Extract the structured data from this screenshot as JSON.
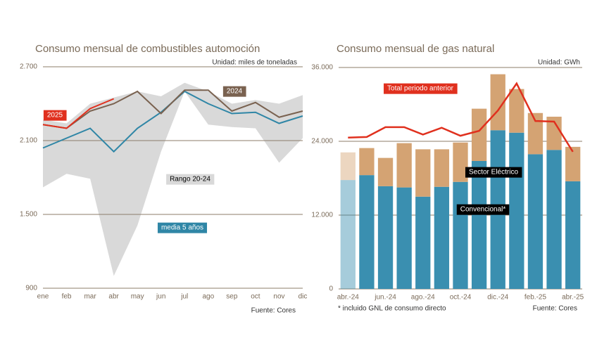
{
  "chart_data": [
    {
      "type": "line",
      "title": "Consumo mensual de combustibles automoción",
      "unit_note": "Unidad: miles de toneladas",
      "source": "Fuente: Cores",
      "categories": [
        "ene",
        "feb",
        "mar",
        "abr",
        "may",
        "jun",
        "jul",
        "ago",
        "sep",
        "oct",
        "nov",
        "dic"
      ],
      "ylim": [
        900,
        2700
      ],
      "yticks": [
        900,
        {
          "value": 1500,
          "label": "1.500"
        },
        {
          "value": 2100,
          "label": "2.100"
        },
        {
          "value": 2700,
          "label": "2.700"
        }
      ],
      "grid": true,
      "series": [
        {
          "name": "Rango 20-24",
          "type": "range",
          "color": "#d9d9d9",
          "low": [
            1720,
            1830,
            1790,
            1000,
            1410,
            2010,
            2500,
            2230,
            2210,
            2200,
            1920,
            2120
          ],
          "high": [
            2270,
            2240,
            2400,
            2450,
            2500,
            2460,
            2570,
            2500,
            2400,
            2430,
            2400,
            2470
          ]
        },
        {
          "name": "media 5 años",
          "color": "#2f86a6",
          "values": [
            2040,
            2120,
            2200,
            2010,
            2200,
            2330,
            2500,
            2400,
            2320,
            2330,
            2240,
            2300
          ]
        },
        {
          "name": "2024",
          "color": "#7a6250",
          "values": [
            2230,
            2200,
            2340,
            2400,
            2500,
            2320,
            2510,
            2510,
            2340,
            2410,
            2290,
            2340
          ]
        },
        {
          "name": "2025",
          "color": "#e0301e",
          "values": [
            2230,
            2200,
            2360,
            2440,
            null,
            null,
            null,
            null,
            null,
            null,
            null,
            null
          ]
        }
      ]
    },
    {
      "type": "stacked_bar",
      "title": "Consumo mensual de gas natural",
      "unit_note": "Unidad: GWh",
      "footnote": "* incluido GNL de consumo directo",
      "source": "Fuente: Cores",
      "categories": [
        "abr.-24",
        null,
        "jun.-24",
        null,
        "ago.-24",
        null,
        "oct.-24",
        null,
        "dic.-24",
        null,
        "feb.-25",
        null,
        "abr.-25"
      ],
      "ylim": [
        0,
        36000
      ],
      "yticks": [
        0,
        {
          "value": 12000,
          "label": "12.000"
        },
        {
          "value": 24000,
          "label": "24.000"
        },
        {
          "value": 36000,
          "label": "36.000"
        }
      ],
      "grid": true,
      "series": [
        {
          "name": "Convencional*",
          "color": "#3a8fb0",
          "values": [
            17700,
            18500,
            16700,
            16500,
            15000,
            16600,
            17400,
            20800,
            25800,
            25400,
            21900,
            22600,
            17500
          ]
        },
        {
          "name": "Sector Eléctrico",
          "color": "#d4a373",
          "values": [
            4500,
            4400,
            4600,
            7200,
            7700,
            6100,
            6400,
            8500,
            9100,
            7100,
            6700,
            5400,
            5600
          ]
        },
        {
          "name": "Total periodo anterior",
          "type": "line",
          "color": "#e0301e",
          "values": [
            24600,
            24700,
            26300,
            26300,
            25100,
            26200,
            24900,
            25700,
            29000,
            33400,
            27300,
            27200,
            22300
          ]
        }
      ]
    }
  ]
}
